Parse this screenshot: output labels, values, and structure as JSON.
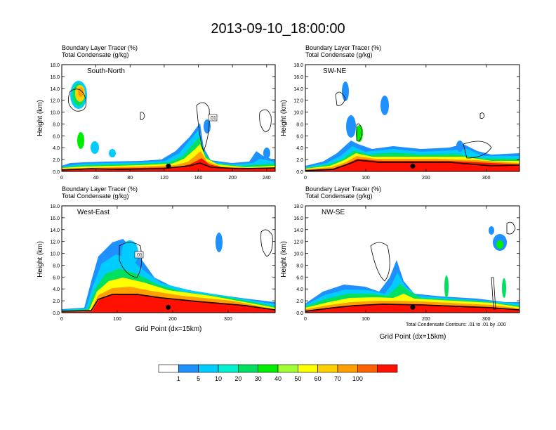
{
  "title": "2013-09-10_18:00:00",
  "footnote": "Total Condensate Contours: .01 to .01 by .000",
  "chart_data": [
    {
      "type": "heatmap",
      "panel_label": "South-North",
      "header_line1": "Boundary Layer Tracer    (%)",
      "header_line2": "Total Condensate    (g/kg)",
      "ylabel": "Height (km)",
      "xlabel": "",
      "xlim": [
        0,
        250
      ],
      "ylim": [
        0,
        18
      ],
      "xticks": [
        0,
        40,
        80,
        120,
        160,
        200,
        240
      ],
      "yticks": [
        "0.0",
        "2.0",
        "4.0",
        "6.0",
        "8.0",
        "10.0",
        "12.0",
        "14.0",
        "16.0",
        "18.0"
      ],
      "contour_label": ".01",
      "marker_x": 125
    },
    {
      "type": "heatmap",
      "panel_label": "SW-NE",
      "header_line1": "Boundary Layer Tracer    (%)",
      "header_line2": "Total Condensate    (g/kg)",
      "ylabel": "Height (km)",
      "xlabel": "",
      "xlim": [
        0,
        355
      ],
      "ylim": [
        0,
        18
      ],
      "xticks": [
        0,
        100,
        200,
        300
      ],
      "yticks": [
        "0.0",
        "2.0",
        "4.0",
        "6.0",
        "8.0",
        "10.0",
        "12.0",
        "14.0",
        "16.0",
        "18.0"
      ],
      "contour_label": "",
      "marker_x": 178
    },
    {
      "type": "heatmap",
      "panel_label": "West-East",
      "header_line1": "Boundary Layer Tracer    (%)",
      "header_line2": "Total Condensate    (g/kg)",
      "ylabel": "Height (km)",
      "xlabel": "Grid Point (dx=15km)",
      "xlim": [
        0,
        385
      ],
      "ylim": [
        0,
        18
      ],
      "xticks": [
        0,
        100,
        200,
        300
      ],
      "yticks": [
        "0.0",
        "2.0",
        "4.0",
        "6.0",
        "8.0",
        "10.0",
        "12.0",
        "14.0",
        "16.0",
        "18.0"
      ],
      "contour_label": ".01",
      "marker_x": 192
    },
    {
      "type": "heatmap",
      "panel_label": "NW-SE",
      "header_line1": "Boundary Layer Tracer    (%)",
      "header_line2": "Total Condensate    (g/kg)",
      "ylabel": "Height (km)",
      "xlabel": "Grid Point (dx=15km)",
      "xlim": [
        0,
        355
      ],
      "ylim": [
        0,
        18
      ],
      "xticks": [
        0,
        100,
        200,
        300
      ],
      "yticks": [
        "0.0",
        "2.0",
        "4.0",
        "6.0",
        "8.0",
        "10.0",
        "12.0",
        "14.0",
        "16.0",
        "18.0"
      ],
      "contour_label": "",
      "marker_x": 178
    }
  ],
  "colorbar": {
    "labels": [
      "1",
      "5",
      "10",
      "20",
      "30",
      "40",
      "50",
      "60",
      "70",
      "100"
    ],
    "colors": [
      "#ffffff",
      "#1e90ff",
      "#00ccff",
      "#00f0d0",
      "#00e060",
      "#00ee00",
      "#a0ff30",
      "#ffff00",
      "#ffd000",
      "#ffa000",
      "#ff6000",
      "#ff1000"
    ]
  }
}
